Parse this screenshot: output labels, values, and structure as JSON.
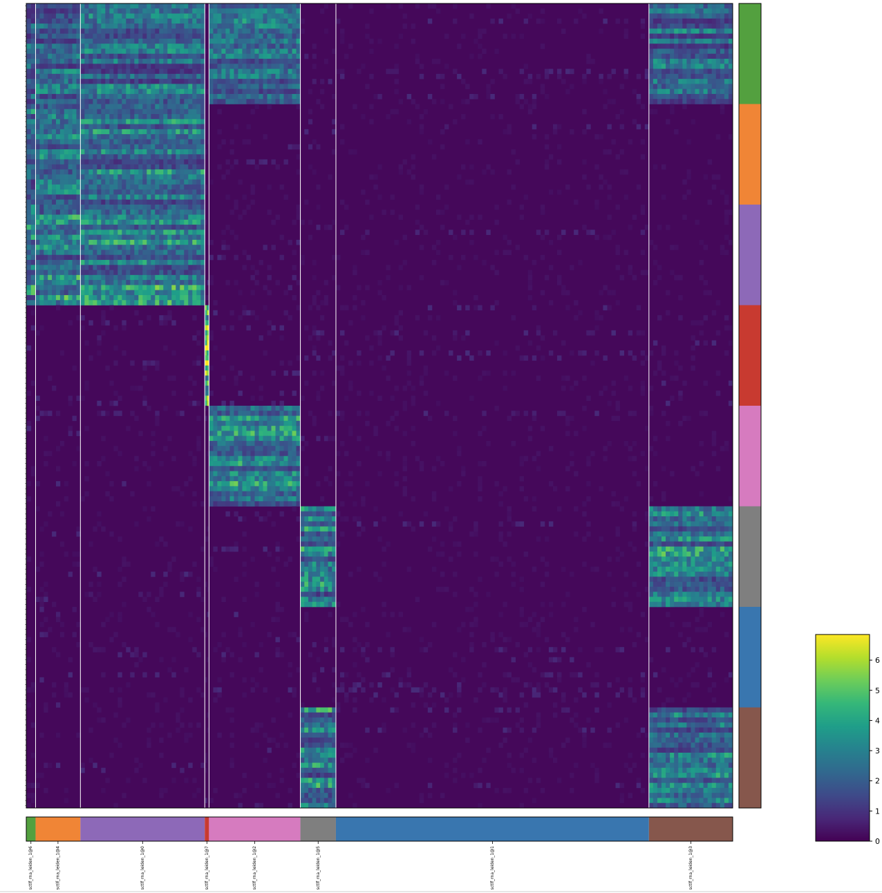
{
  "chart_data": {
    "type": "heatmap",
    "title": "",
    "xlabel": "",
    "ylabel": "",
    "groups": [
      {
        "label": "sctlf_rna_leiden_1@6",
        "cells": 11,
        "color": "#53a03f"
      },
      {
        "label": "sctlf_rna_leiden_1@4",
        "cells": 53,
        "color": "#f08536"
      },
      {
        "label": "sctlf_rna_leiden_1@0",
        "cells": 147,
        "color": "#8d69b8"
      },
      {
        "label": "sctlf_rna_leiden_1@7",
        "cells": 5,
        "color": "#c83a30"
      },
      {
        "label": "sctlf_rna_leiden_1@2",
        "cells": 108,
        "color": "#d67bbf"
      },
      {
        "label": "sctlf_rna_leiden_1@5",
        "cells": 42,
        "color": "#7f7f7f"
      },
      {
        "label": "sctlf_rna_leiden_1@1",
        "cells": 370,
        "color": "#3976af"
      },
      {
        "label": "sctlf_rna_leiden_1@3",
        "cells": 99,
        "color": "#86574c"
      }
    ],
    "row_block_colors": [
      "#53a03f",
      "#f08536",
      "#8d69b8",
      "#c83a30",
      "#d67bbf",
      "#7f7f7f",
      "#3976af",
      "#86574c"
    ],
    "genes_per_block": 20,
    "colorbar": {
      "ticks": [
        "0",
        "1",
        "2",
        "3",
        "4",
        "5",
        "6"
      ],
      "range": [
        0,
        6.85
      ],
      "colormap": "viridis"
    },
    "high_expression_blocks": [
      {
        "row_block": 0,
        "groups": [
          0,
          1,
          2,
          4,
          7
        ],
        "level": 2.6
      },
      {
        "row_block": 1,
        "groups": [
          0,
          1,
          2
        ],
        "level": 3.0
      },
      {
        "row_block": 2,
        "groups": [
          0,
          1,
          2
        ],
        "level": 3.4
      },
      {
        "row_block": 3,
        "groups": [
          3
        ],
        "level": 5.5
      },
      {
        "row_block": 4,
        "groups": [
          4
        ],
        "level": 3.2
      },
      {
        "row_block": 5,
        "groups": [
          5,
          7
        ],
        "level": 3.2
      },
      {
        "row_block": 6,
        "groups": [],
        "level": 0.3
      },
      {
        "row_block": 7,
        "groups": [
          5,
          7
        ],
        "level": 3.2
      }
    ]
  }
}
